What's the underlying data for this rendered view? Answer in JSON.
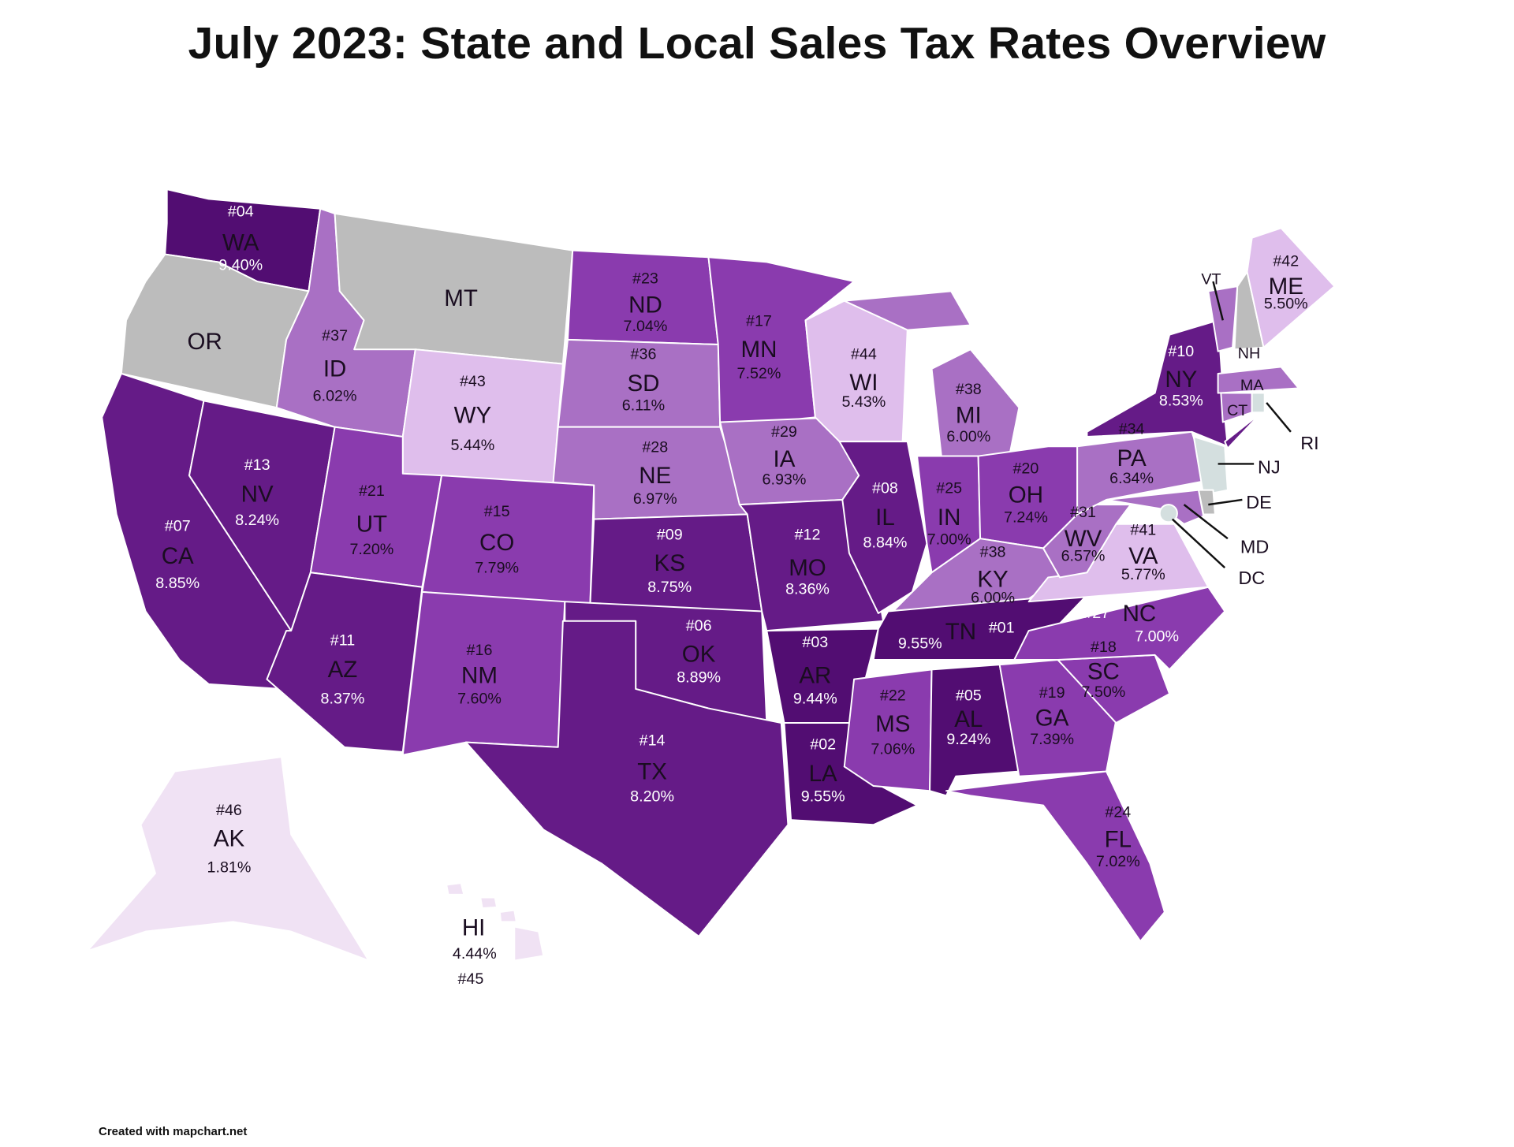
{
  "title": "July 2023: State and Local Sales Tax Rates Overview",
  "footer": "Created with mapchart.net",
  "palette": {
    "tier_950": "#520d72",
    "tier_800": "#651b87",
    "tier_700": "#8a3bae",
    "tier_600": "#a970c4",
    "tier_500": "#dfbeec",
    "tier_0": "#f0e2f4",
    "no_tax": "#bcbcbc",
    "small_state": "#d4dfdf",
    "dark_text": "#1a0d20",
    "light_text": "#ffffff"
  },
  "states": [
    {
      "abbr": "WA",
      "rank": "#04",
      "rate": "9.40%",
      "tier": "tier_950"
    },
    {
      "abbr": "OR",
      "rank": "",
      "rate": "",
      "tier": "no_tax"
    },
    {
      "abbr": "CA",
      "rank": "#07",
      "rate": "8.85%",
      "tier": "tier_800"
    },
    {
      "abbr": "NV",
      "rank": "#13",
      "rate": "8.24%",
      "tier": "tier_800"
    },
    {
      "abbr": "ID",
      "rank": "#37",
      "rate": "6.02%",
      "tier": "tier_600"
    },
    {
      "abbr": "MT",
      "rank": "",
      "rate": "",
      "tier": "no_tax"
    },
    {
      "abbr": "WY",
      "rank": "#43",
      "rate": "5.44%",
      "tier": "tier_500"
    },
    {
      "abbr": "UT",
      "rank": "#21",
      "rate": "7.20%",
      "tier": "tier_700"
    },
    {
      "abbr": "CO",
      "rank": "#15",
      "rate": "7.79%",
      "tier": "tier_700"
    },
    {
      "abbr": "AZ",
      "rank": "#11",
      "rate": "8.37%",
      "tier": "tier_800"
    },
    {
      "abbr": "NM",
      "rank": "#16",
      "rate": "7.60%",
      "tier": "tier_700"
    },
    {
      "abbr": "ND",
      "rank": "#23",
      "rate": "7.04%",
      "tier": "tier_700"
    },
    {
      "abbr": "SD",
      "rank": "#36",
      "rate": "6.11%",
      "tier": "tier_600"
    },
    {
      "abbr": "NE",
      "rank": "#28",
      "rate": "6.97%",
      "tier": "tier_600"
    },
    {
      "abbr": "KS",
      "rank": "#09",
      "rate": "8.75%",
      "tier": "tier_800"
    },
    {
      "abbr": "OK",
      "rank": "#06",
      "rate": "8.89%",
      "tier": "tier_800"
    },
    {
      "abbr": "TX",
      "rank": "#14",
      "rate": "8.20%",
      "tier": "tier_800"
    },
    {
      "abbr": "MN",
      "rank": "#17",
      "rate": "7.52%",
      "tier": "tier_700"
    },
    {
      "abbr": "IA",
      "rank": "#29",
      "rate": "6.93%",
      "tier": "tier_600"
    },
    {
      "abbr": "MO",
      "rank": "#12",
      "rate": "8.36%",
      "tier": "tier_800"
    },
    {
      "abbr": "AR",
      "rank": "#03",
      "rate": "9.44%",
      "tier": "tier_950"
    },
    {
      "abbr": "LA",
      "rank": "#02",
      "rate": "9.55%",
      "tier": "tier_950"
    },
    {
      "abbr": "WI",
      "rank": "#44",
      "rate": "5.43%",
      "tier": "tier_500"
    },
    {
      "abbr": "IL",
      "rank": "#08",
      "rate": "8.84%",
      "tier": "tier_800"
    },
    {
      "abbr": "MI",
      "rank": "#38",
      "rate": "6.00%",
      "tier": "tier_600"
    },
    {
      "abbr": "IN",
      "rank": "#25",
      "rate": "7.00%",
      "tier": "tier_700"
    },
    {
      "abbr": "OH",
      "rank": "#20",
      "rate": "7.24%",
      "tier": "tier_700"
    },
    {
      "abbr": "KY",
      "rank": "#38",
      "rate": "6.00%",
      "tier": "tier_600"
    },
    {
      "abbr": "TN",
      "rank": "#01",
      "rate": "9.55%",
      "tier": "tier_950"
    },
    {
      "abbr": "MS",
      "rank": "#22",
      "rate": "7.06%",
      "tier": "tier_700"
    },
    {
      "abbr": "AL",
      "rank": "#05",
      "rate": "9.24%",
      "tier": "tier_950"
    },
    {
      "abbr": "GA",
      "rank": "#19",
      "rate": "7.39%",
      "tier": "tier_700"
    },
    {
      "abbr": "FL",
      "rank": "#24",
      "rate": "7.02%",
      "tier": "tier_700"
    },
    {
      "abbr": "SC",
      "rank": "#18",
      "rate": "7.50%",
      "tier": "tier_700"
    },
    {
      "abbr": "NC",
      "rank": "#27",
      "rate": "7.00%",
      "tier": "tier_700"
    },
    {
      "abbr": "VA",
      "rank": "#41",
      "rate": "5.77%",
      "tier": "tier_500"
    },
    {
      "abbr": "WV",
      "rank": "#31",
      "rate": "6.57%",
      "tier": "tier_600"
    },
    {
      "abbr": "PA",
      "rank": "#34",
      "rate": "6.34%",
      "tier": "tier_600"
    },
    {
      "abbr": "NY",
      "rank": "#10",
      "rate": "8.53%",
      "tier": "tier_800"
    },
    {
      "abbr": "NJ",
      "rank": "",
      "rate": "",
      "tier": "small_state"
    },
    {
      "abbr": "DE",
      "rank": "",
      "rate": "",
      "tier": "no_tax"
    },
    {
      "abbr": "MD",
      "rank": "",
      "rate": "",
      "tier": "tier_600"
    },
    {
      "abbr": "DC",
      "rank": "",
      "rate": "",
      "tier": "small_state"
    },
    {
      "abbr": "VT",
      "rank": "",
      "rate": "",
      "tier": "tier_600"
    },
    {
      "abbr": "NH",
      "rank": "",
      "rate": "",
      "tier": "no_tax"
    },
    {
      "abbr": "ME",
      "rank": "#42",
      "rate": "5.50%",
      "tier": "tier_500"
    },
    {
      "abbr": "MA",
      "rank": "",
      "rate": "",
      "tier": "tier_600"
    },
    {
      "abbr": "CT",
      "rank": "",
      "rate": "",
      "tier": "tier_600"
    },
    {
      "abbr": "RI",
      "rank": "",
      "rate": "",
      "tier": "small_state"
    },
    {
      "abbr": "AK",
      "rank": "#46",
      "rate": "1.81%",
      "tier": "tier_0"
    },
    {
      "abbr": "HI",
      "rank": "#45",
      "rate": "4.44%",
      "tier": "tier_0"
    }
  ]
}
